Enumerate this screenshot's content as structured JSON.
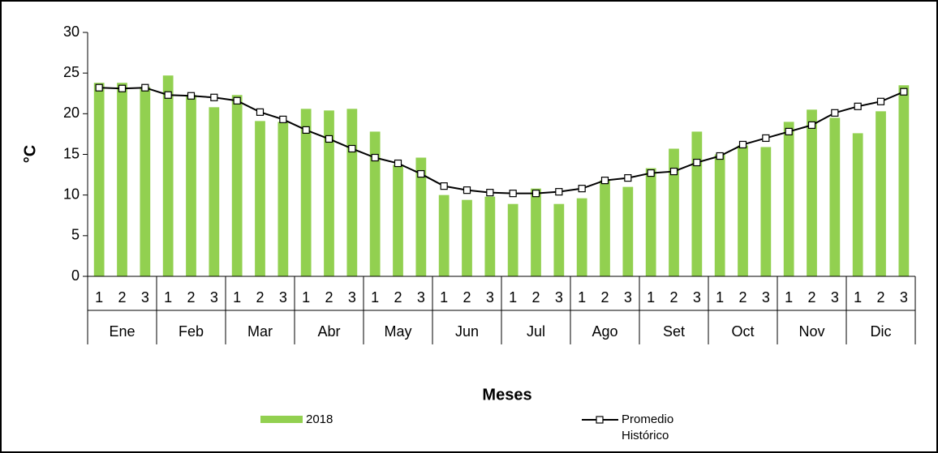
{
  "chart_data": {
    "type": "bar-line",
    "y_label": "°C",
    "x_label": "Meses",
    "categories": [
      "1",
      "2",
      "3",
      "1",
      "2",
      "3",
      "1",
      "2",
      "3",
      "1",
      "2",
      "3",
      "1",
      "2",
      "3",
      "1",
      "2",
      "3",
      "1",
      "2",
      "3",
      "1",
      "2",
      "3",
      "1",
      "2",
      "3",
      "1",
      "2",
      "3",
      "1",
      "2",
      "3",
      "1",
      "2",
      "3"
    ],
    "groups": [
      "Ene",
      "Feb",
      "Mar",
      "Abr",
      "May",
      "Jun",
      "Jul",
      "Ago",
      "Set",
      "Oct",
      "Nov",
      "Dic"
    ],
    "series": [
      {
        "name": "2018",
        "type": "bar",
        "color": "#92d050",
        "values": [
          23.8,
          23.8,
          23.3,
          24.7,
          22.3,
          20.8,
          22.3,
          19.1,
          19.0,
          20.6,
          20.4,
          20.6,
          17.8,
          13.7,
          14.6,
          10.0,
          9.4,
          9.8,
          8.9,
          10.8,
          8.9,
          9.6,
          11.8,
          11.0,
          13.3,
          15.7,
          17.8,
          15.0,
          16.1,
          15.9,
          19.0,
          20.5,
          19.5,
          17.6,
          20.3,
          23.5
        ]
      },
      {
        "name": "Promedio Histórico",
        "type": "line",
        "color": "#000000",
        "values": [
          23.2,
          23.1,
          23.2,
          22.3,
          22.2,
          22.0,
          21.6,
          20.2,
          19.3,
          18.0,
          16.9,
          15.7,
          14.6,
          13.9,
          12.6,
          11.1,
          10.6,
          10.3,
          10.2,
          10.2,
          10.4,
          10.8,
          11.8,
          12.1,
          12.7,
          12.9,
          14.0,
          14.8,
          16.2,
          17.0,
          17.8,
          18.6,
          20.1,
          20.9,
          21.5,
          22.7
        ]
      }
    ],
    "ylim": [
      0,
      30
    ],
    "yticks": [
      0,
      5,
      10,
      15,
      20,
      25,
      30
    ]
  }
}
